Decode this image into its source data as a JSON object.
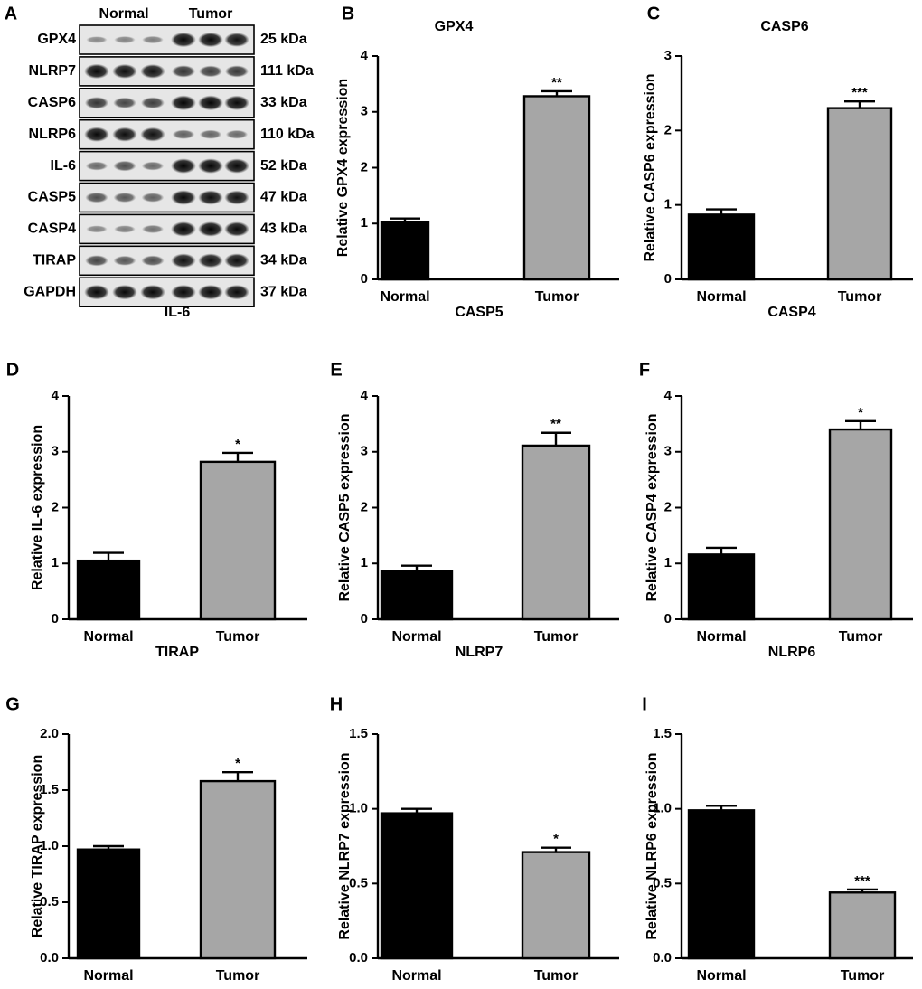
{
  "panel_a": {
    "letter": "A",
    "group_labels": [
      "Normal",
      "Tumor"
    ],
    "bands": [
      {
        "protein": "GPX4",
        "size": "25 kDa",
        "intensity": [
          0.22,
          0.25,
          0.28,
          0.95,
          0.95,
          0.9
        ]
      },
      {
        "protein": "NLRP7",
        "size": "111 kDa",
        "intensity": [
          0.95,
          0.92,
          0.9,
          0.7,
          0.65,
          0.68
        ]
      },
      {
        "protein": "CASP6",
        "size": "33 kDa",
        "intensity": [
          0.7,
          0.6,
          0.65,
          0.97,
          0.97,
          0.95
        ]
      },
      {
        "protein": "NLRP6",
        "size": "110 kDa",
        "intensity": [
          0.95,
          0.92,
          0.9,
          0.45,
          0.42,
          0.4
        ]
      },
      {
        "protein": "IL-6",
        "size": "52 kDa",
        "intensity": [
          0.4,
          0.55,
          0.4,
          0.97,
          0.97,
          0.95
        ]
      },
      {
        "protein": "CASP5",
        "size": "47 kDa",
        "intensity": [
          0.55,
          0.5,
          0.45,
          0.95,
          0.92,
          0.9
        ]
      },
      {
        "protein": "CASP4",
        "size": "43 kDa",
        "intensity": [
          0.25,
          0.28,
          0.35,
          0.97,
          0.97,
          0.95
        ]
      },
      {
        "protein": "TIRAP",
        "size": "34 kDa",
        "intensity": [
          0.6,
          0.5,
          0.55,
          0.9,
          0.9,
          0.92
        ]
      },
      {
        "protein": "GAPDH",
        "size": "37 kDa",
        "intensity": [
          0.95,
          0.95,
          0.95,
          0.95,
          0.95,
          0.95
        ]
      }
    ]
  },
  "chart_data": [
    {
      "letter": "B",
      "type": "bar",
      "title": "GPX4",
      "categories": [
        "Normal",
        "Tumor"
      ],
      "values": [
        1.03,
        3.28
      ],
      "errors": [
        0.06,
        0.09
      ],
      "significance": [
        "",
        "**"
      ],
      "ylabel": "Relative GPX4 expression",
      "ylim": [
        0,
        4
      ],
      "yticks": [
        "0",
        "1",
        "2",
        "3",
        "4"
      ],
      "colors": [
        "#000000",
        "#a6a6a6"
      ]
    },
    {
      "letter": "C",
      "type": "bar",
      "title": "CASP6",
      "categories": [
        "Normal",
        "Tumor"
      ],
      "values": [
        0.87,
        2.3
      ],
      "errors": [
        0.07,
        0.09
      ],
      "significance": [
        "",
        "***"
      ],
      "ylabel": "Relative CASP6 expression",
      "ylim": [
        0,
        3
      ],
      "yticks": [
        "0",
        "1",
        "2",
        "3"
      ],
      "colors": [
        "#000000",
        "#a6a6a6"
      ]
    },
    {
      "letter": "D",
      "type": "bar",
      "title": "IL-6",
      "categories": [
        "Normal",
        "Tumor"
      ],
      "values": [
        1.05,
        2.82
      ],
      "errors": [
        0.14,
        0.16
      ],
      "significance": [
        "",
        "*"
      ],
      "ylabel": "Relative IL-6 expression",
      "ylim": [
        0,
        4
      ],
      "yticks": [
        "0",
        "1",
        "2",
        "3",
        "4"
      ],
      "colors": [
        "#000000",
        "#a6a6a6"
      ]
    },
    {
      "letter": "E",
      "type": "bar",
      "title": "CASP5",
      "categories": [
        "Normal",
        "Tumor"
      ],
      "values": [
        0.87,
        3.11
      ],
      "errors": [
        0.09,
        0.23
      ],
      "significance": [
        "",
        "**"
      ],
      "ylabel": "Relative CASP5 expression",
      "ylim": [
        0,
        4
      ],
      "yticks": [
        "0",
        "1",
        "2",
        "3",
        "4"
      ],
      "colors": [
        "#000000",
        "#a6a6a6"
      ]
    },
    {
      "letter": "F",
      "type": "bar",
      "title": "CASP4",
      "categories": [
        "Normal",
        "Tumor"
      ],
      "values": [
        1.16,
        3.4
      ],
      "errors": [
        0.12,
        0.15
      ],
      "significance": [
        "",
        "*"
      ],
      "ylabel": "Relative CASP4 expression",
      "ylim": [
        0,
        4
      ],
      "yticks": [
        "0",
        "1",
        "2",
        "3",
        "4"
      ],
      "colors": [
        "#000000",
        "#a6a6a6"
      ]
    },
    {
      "letter": "G",
      "type": "bar",
      "title": "TIRAP",
      "categories": [
        "Normal",
        "Tumor"
      ],
      "values": [
        0.97,
        1.58
      ],
      "errors": [
        0.03,
        0.08
      ],
      "significance": [
        "",
        "*"
      ],
      "ylabel": "Relative TIRAP expression",
      "ylim": [
        0,
        2
      ],
      "yticks": [
        "0.0",
        "0.5",
        "1.0",
        "1.5",
        "2.0"
      ],
      "colors": [
        "#000000",
        "#a6a6a6"
      ]
    },
    {
      "letter": "H",
      "type": "bar",
      "title": "NLRP7",
      "categories": [
        "Normal",
        "Tumor"
      ],
      "values": [
        0.97,
        0.71
      ],
      "errors": [
        0.03,
        0.03
      ],
      "significance": [
        "",
        "*"
      ],
      "ylabel": "Relative NLRP7 expression",
      "ylim": [
        0,
        1.5
      ],
      "yticks": [
        "0.0",
        "0.5",
        "1.0",
        "1.5"
      ],
      "colors": [
        "#000000",
        "#a6a6a6"
      ]
    },
    {
      "letter": "I",
      "type": "bar",
      "title": "NLRP6",
      "categories": [
        "Normal",
        "Tumor"
      ],
      "values": [
        0.99,
        0.44
      ],
      "errors": [
        0.03,
        0.02
      ],
      "significance": [
        "",
        "***"
      ],
      "ylabel": "Relative NLRP6 expression",
      "ylim": [
        0,
        1.5
      ],
      "yticks": [
        "0.0",
        "0.5",
        "1.0",
        "1.5"
      ],
      "colors": [
        "#000000",
        "#a6a6a6"
      ]
    }
  ]
}
